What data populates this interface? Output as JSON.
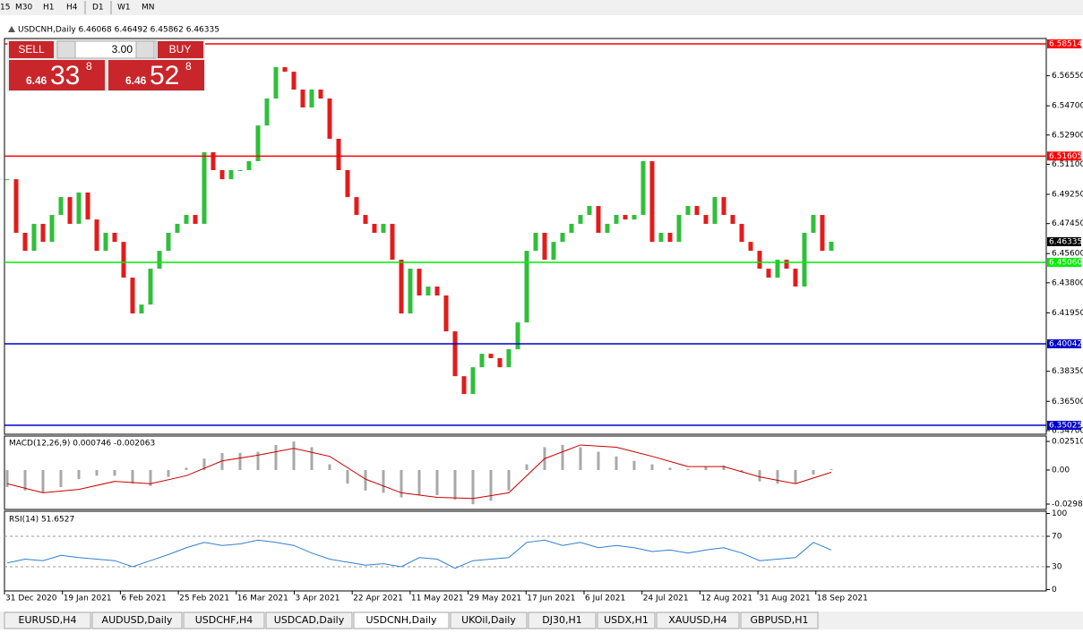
{
  "toolbar": {
    "timeframes": [
      "15",
      "M30",
      "H1",
      "H4",
      "D1",
      "W1",
      "MN"
    ]
  },
  "trade_panel": {
    "sell": "SELL",
    "lots": "3.00",
    "buy": "BUY",
    "sell_big": "6.46",
    "sell_digits": "33",
    "sell_sup": "8",
    "buy_big": "6.46",
    "buy_digits": "52",
    "buy_sup": "8"
  },
  "chart_data": [
    {
      "type": "candlestick",
      "title": "USDCNH,Daily  6.46068 6.46492 6.45862 6.46335",
      "up_color": "#2fbf3a",
      "down_color": "#e31b1b",
      "close": [
        6.5018,
        6.4688,
        6.4577,
        6.4743,
        6.4632,
        6.4798,
        6.4908,
        6.4743,
        6.4936,
        6.477,
        6.4577,
        6.4688,
        6.4632,
        6.4412,
        6.4191,
        6.4246,
        6.4467,
        6.4577,
        6.4688,
        6.4743,
        6.4798,
        6.4743,
        6.5184,
        6.5074,
        6.5018,
        6.5074,
        6.5074,
        6.5129,
        6.5349,
        6.5515,
        6.5708,
        6.568,
        6.557,
        6.546,
        6.557,
        6.5515,
        6.5267,
        6.5074,
        6.4908,
        6.4798,
        6.4743,
        6.4688,
        6.4743,
        6.4522,
        6.4191,
        6.4467,
        6.4302,
        6.4357,
        6.4302,
        6.4081,
        6.3805,
        6.3695,
        6.386,
        6.3943,
        6.3916,
        6.386,
        6.3971,
        6.4136,
        6.4577,
        6.4688,
        6.4522,
        6.4632,
        6.4688,
        6.4743,
        6.4798,
        6.4853,
        6.4688,
        6.4743,
        6.4798,
        6.477,
        6.4798,
        6.5129,
        6.4632,
        6.4688,
        6.4632,
        6.4798,
        6.4853,
        6.4798,
        6.4743,
        6.4908,
        6.4798,
        6.4743,
        6.4632,
        6.4577,
        6.4467,
        6.4412,
        6.4522,
        6.4467,
        6.4357,
        6.4688,
        6.4798,
        6.4577,
        6.4633
      ],
      "ylim": [
        6.3453,
        6.5879
      ],
      "yticks": [
        {
          "value": 6.5655,
          "label": "6.56550"
        },
        {
          "value": 6.547,
          "label": "6.54700"
        },
        {
          "value": 6.529,
          "label": "6.52900"
        },
        {
          "value": 6.511,
          "label": "6.51100"
        },
        {
          "value": 6.4925,
          "label": "6.49250"
        },
        {
          "value": 6.4745,
          "label": "6.47450"
        },
        {
          "value": 6.456,
          "label": "6.45600"
        },
        {
          "value": 6.438,
          "label": "6.43800"
        },
        {
          "value": 6.4195,
          "label": "6.41950"
        },
        {
          "value": 6.3835,
          "label": "6.38350"
        },
        {
          "value": 6.365,
          "label": "6.36500"
        },
        {
          "value": 6.347,
          "label": "6.34700"
        }
      ],
      "levels": [
        {
          "value": 6.58514,
          "color": "#ff0000"
        },
        {
          "value": 6.51605,
          "color": "#ff0000"
        },
        {
          "value": 6.4506,
          "label": "6.45060",
          "color": "#00ee00"
        },
        {
          "value": 6.40042,
          "color": "#0000cc"
        },
        {
          "value": 6.35025,
          "color": "#0000cc"
        }
      ],
      "last": 6.46335,
      "x_tick_labels": [
        "31 Dec 2020",
        "19 Jan 2021",
        "6 Feb 2021",
        "25 Feb 2021",
        "16 Mar 2021",
        "3 Apr 2021",
        "22 Apr 2021",
        "11 May 2021",
        "29 May 2021",
        "17 Jun 2021",
        "6 Jul 2021",
        "24 Jul 2021",
        "12 Aug 2021",
        "31 Aug 2021",
        "18 Sep 2021"
      ]
    },
    {
      "type": "macd",
      "title": "MACD(12,26,9) 0.000746 -0.002063",
      "hist_color": "#a8a8a8",
      "signal_color": "#cc0000",
      "histogram": [
        -0.015,
        -0.018,
        -0.02,
        -0.015,
        -0.008,
        -0.005,
        -0.005,
        -0.012,
        -0.014,
        -0.006,
        0.002,
        0.01,
        0.015,
        0.015,
        0.016,
        0.022,
        0.025,
        0.02,
        0.005,
        -0.012,
        -0.018,
        -0.02,
        -0.024,
        -0.022,
        -0.022,
        -0.026,
        -0.03,
        -0.027,
        -0.018,
        0.005,
        0.02,
        0.022,
        0.02,
        0.016,
        0.012,
        0.008,
        0.005,
        0.002,
        0.001,
        0.003,
        0.004,
        -0.002,
        -0.01,
        -0.012,
        -0.012,
        -0.004,
        0.0007
      ],
      "signal": [
        -0.012,
        -0.02,
        -0.017,
        -0.01,
        -0.012,
        -0.005,
        0.008,
        0.013,
        0.019,
        0.012,
        -0.008,
        -0.02,
        -0.024,
        -0.025,
        -0.02,
        0.01,
        0.022,
        0.02,
        0.012,
        0.003,
        0.003,
        -0.006,
        -0.012,
        -0.002
      ],
      "ylim": [
        -0.03381,
        0.02903
      ],
      "yticks": [
        0.025108,
        {
          "value": 0,
          "label": "0.00"
        },
        -0.02988
      ]
    },
    {
      "type": "rsi",
      "title": "RSI(14) 51.6527",
      "color": "#2f7fd0",
      "values": [
        35,
        40,
        38,
        45,
        42,
        40,
        38,
        30,
        38,
        46,
        55,
        62,
        58,
        60,
        65,
        62,
        58,
        48,
        40,
        36,
        32,
        34,
        30,
        42,
        40,
        28,
        38,
        40,
        42,
        62,
        65,
        58,
        62,
        55,
        58,
        55,
        50,
        52,
        48,
        52,
        55,
        48,
        38,
        40,
        42,
        62,
        52
      ],
      "ylim": [
        -1.8,
        101.8
      ],
      "yticks": [
        100,
        70,
        30,
        0
      ],
      "levels": [
        70,
        30
      ]
    }
  ],
  "tabs": [
    "EURUSD,H4",
    "AUDUSD,Daily",
    "USDCHF,H4",
    "USDCAD,Daily",
    "USDCNH,Daily",
    "UKOil,Daily",
    "DJ30,H1",
    "USDX,H1",
    "XAUUSD,H4",
    "GBPUSD,H1"
  ],
  "active_tab": 4
}
